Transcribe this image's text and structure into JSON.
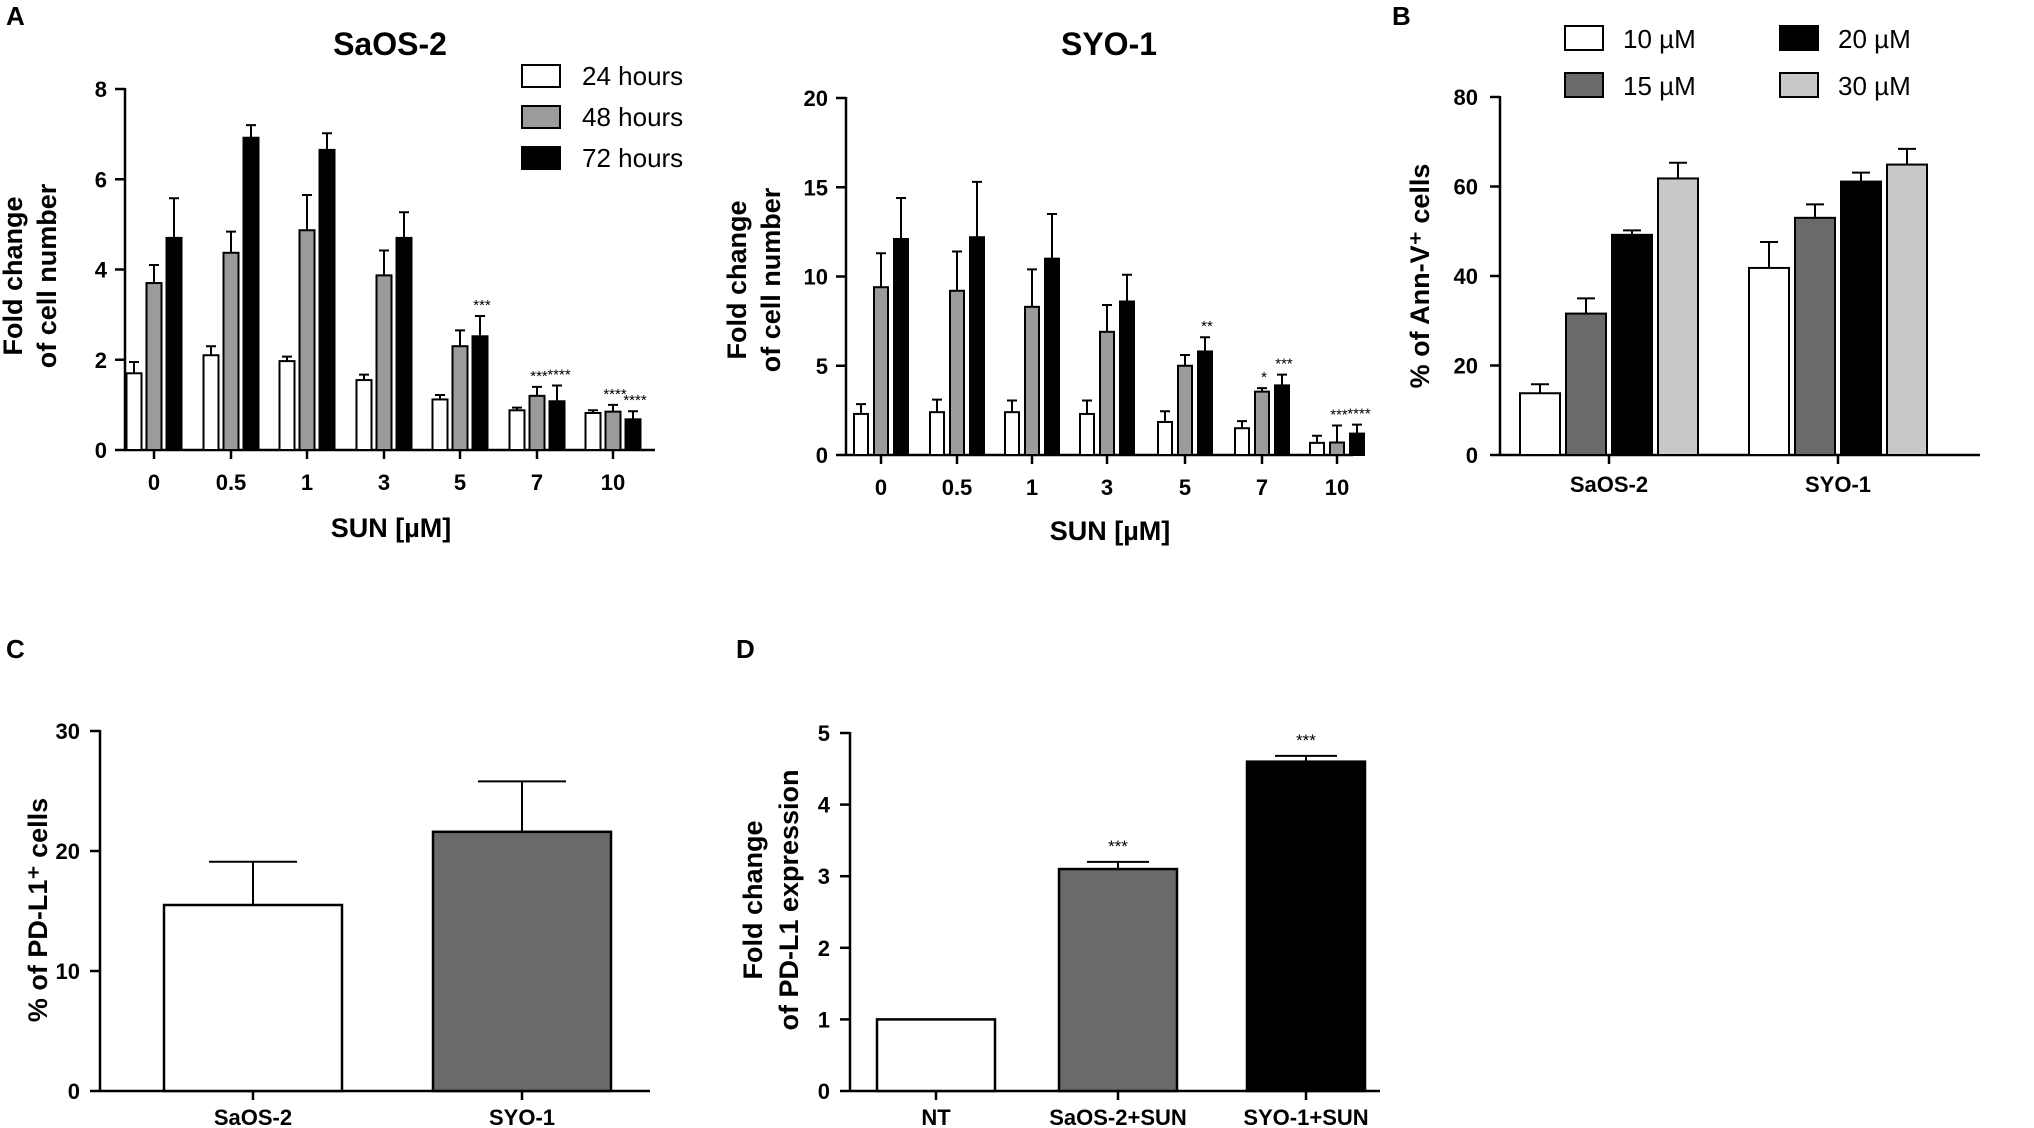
{
  "panels": {
    "A": "A",
    "B": "B",
    "C": "C",
    "D": "D"
  },
  "colors": {
    "white": "#ffffff",
    "gray_light": "#c8c8c8",
    "gray_mid": "#9b9b9b",
    "gray_dark": "#6a6a6a",
    "black": "#000000"
  },
  "chart_data": [
    {
      "id": "saos2_growth",
      "panel": "A",
      "type": "bar",
      "title": "SaOS-2",
      "xlabel": "SUN [µM]",
      "ylabel": [
        "Fold change",
        "of cell number"
      ],
      "ylim": [
        0,
        8
      ],
      "yticks": [
        0,
        2,
        4,
        6,
        8
      ],
      "categories": [
        "0",
        "0.5",
        "1",
        "3",
        "5",
        "7",
        "10"
      ],
      "series": [
        {
          "name": "24 hours",
          "color": "#ffffff",
          "values": [
            1.7,
            2.1,
            1.97,
            1.55,
            1.12,
            0.88,
            0.82
          ],
          "errors": [
            0.25,
            0.2,
            0.1,
            0.12,
            0.1,
            0.06,
            0.06
          ],
          "sig": [
            "",
            "",
            "",
            "",
            "",
            "",
            ""
          ]
        },
        {
          "name": "48 hours",
          "color": "#9b9b9b",
          "values": [
            3.7,
            4.37,
            4.87,
            3.87,
            2.3,
            1.2,
            0.85
          ],
          "errors": [
            0.4,
            0.47,
            0.78,
            0.55,
            0.35,
            0.2,
            0.15
          ],
          "sig": [
            "",
            "",
            "",
            "",
            "",
            "***",
            "****"
          ]
        },
        {
          "name": "72 hours",
          "color": "#000000",
          "values": [
            4.7,
            6.92,
            6.65,
            4.7,
            2.52,
            1.08,
            0.68
          ],
          "errors": [
            0.88,
            0.28,
            0.37,
            0.57,
            0.45,
            0.35,
            0.18
          ],
          "sig": [
            "",
            "",
            "",
            "",
            "***",
            "****",
            "****"
          ]
        }
      ]
    },
    {
      "id": "syo1_growth",
      "panel": "A",
      "type": "bar",
      "title": "SYO-1",
      "xlabel": "SUN [µM]",
      "ylabel": [
        "Fold change",
        "of cell number"
      ],
      "ylim": [
        0,
        20
      ],
      "yticks": [
        0,
        5,
        10,
        15,
        20
      ],
      "categories": [
        "0",
        "0.5",
        "1",
        "3",
        "5",
        "7",
        "10"
      ],
      "series": [
        {
          "name": "24 hours",
          "color": "#ffffff",
          "values": [
            2.3,
            2.4,
            2.4,
            2.3,
            1.85,
            1.5,
            0.68
          ],
          "errors": [
            0.55,
            0.7,
            0.65,
            0.75,
            0.6,
            0.4,
            0.4
          ],
          "sig": [
            "",
            "",
            "",
            "",
            "",
            "",
            ""
          ]
        },
        {
          "name": "48 hours",
          "color": "#9b9b9b",
          "values": [
            9.4,
            9.2,
            8.3,
            6.9,
            5.0,
            3.55,
            0.7
          ],
          "errors": [
            1.9,
            2.2,
            2.1,
            1.5,
            0.6,
            0.2,
            0.95
          ],
          "sig": [
            "",
            "",
            "",
            "",
            "",
            "*",
            "***"
          ]
        },
        {
          "name": "72 hours",
          "color": "#000000",
          "values": [
            12.1,
            12.2,
            11.0,
            8.6,
            5.8,
            3.9,
            1.2
          ],
          "errors": [
            2.3,
            3.1,
            2.5,
            1.5,
            0.8,
            0.6,
            0.5
          ],
          "sig": [
            "",
            "",
            "",
            "",
            "**",
            "***",
            "****"
          ]
        }
      ]
    },
    {
      "id": "annexin",
      "panel": "B",
      "type": "bar",
      "title": "",
      "xlabel": "",
      "ylabel": [
        "% of Ann-V⁺ cells"
      ],
      "ylim": [
        0,
        80
      ],
      "yticks": [
        0,
        20,
        40,
        60,
        80
      ],
      "categories": [
        "SaOS-2",
        "SYO-1"
      ],
      "series": [
        {
          "name": "10 µM",
          "color": "#ffffff",
          "values": [
            13.8,
            41.8
          ],
          "errors": [
            2.0,
            5.8
          ]
        },
        {
          "name": "15 µM",
          "color": "#6a6a6a",
          "values": [
            31.6,
            53.0
          ],
          "errors": [
            3.4,
            3.0
          ]
        },
        {
          "name": "20 µM",
          "color": "#000000",
          "values": [
            49.2,
            61.1
          ],
          "errors": [
            1.0,
            2.0
          ]
        },
        {
          "name": "30 µM",
          "color": "#c8c8c8",
          "values": [
            61.8,
            64.9
          ],
          "errors": [
            3.5,
            3.5
          ]
        }
      ]
    },
    {
      "id": "pdl1_percent",
      "panel": "C",
      "type": "bar",
      "title": "",
      "xlabel": "",
      "ylabel": [
        "% of PD-L1⁺ cells"
      ],
      "ylim": [
        0,
        30
      ],
      "yticks": [
        0,
        10,
        20,
        30
      ],
      "categories": [
        "SaOS-2",
        "SYO-1"
      ],
      "series": [
        {
          "name": "PD-L1+ cells",
          "colors": [
            "#ffffff",
            "#6a6a6a"
          ],
          "values": [
            15.5,
            21.6
          ],
          "errors": [
            3.6,
            4.2
          ]
        }
      ]
    },
    {
      "id": "pdl1_expression",
      "panel": "D",
      "type": "bar",
      "title": "",
      "xlabel": "",
      "ylabel": [
        "Fold change",
        "of PD-L1 expression"
      ],
      "ylim": [
        0,
        5
      ],
      "yticks": [
        0,
        1,
        2,
        3,
        4,
        5
      ],
      "categories": [
        "NT",
        "SaOS-2+SUN",
        "SYO-1+SUN"
      ],
      "series": [
        {
          "name": "PD-L1 expression",
          "colors": [
            "#ffffff",
            "#6a6a6a",
            "#000000"
          ],
          "values": [
            1.0,
            3.1,
            4.6
          ],
          "errors": [
            0,
            0.1,
            0.08
          ],
          "sig": [
            "",
            "***",
            "***"
          ]
        }
      ]
    }
  ]
}
